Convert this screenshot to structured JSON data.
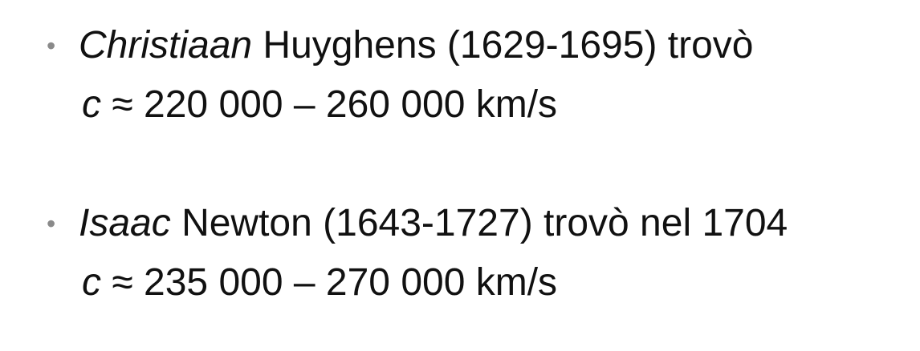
{
  "items": [
    {
      "bullet_glyph": "•",
      "italic_name": "Christiaan",
      "rest_text": " Huyghens (1629-1695) trovò",
      "value_symbol": "c",
      "value_text": " ≈ 220 000 – 260 000 km/s"
    },
    {
      "bullet_glyph": "•",
      "italic_name": "Isaac",
      "rest_text": " Newton (1643-1727) trovò nel 1704",
      "value_symbol": "c",
      "value_text": " ≈ 235 000 – 270 000 km/s"
    }
  ]
}
